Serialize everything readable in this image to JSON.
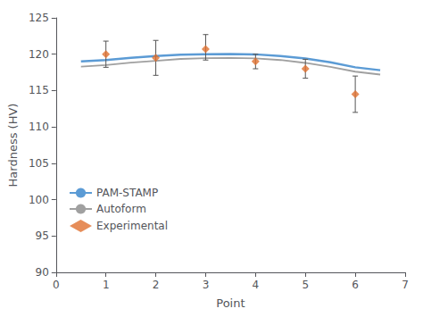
{
  "chart_data": {
    "type": "line",
    "xlabel": "Point",
    "ylabel": "Hardness (HV)",
    "xlim": [
      0,
      7
    ],
    "ylim": [
      90,
      125
    ],
    "xticks": [
      0,
      1,
      2,
      3,
      4,
      5,
      6,
      7
    ],
    "yticks": [
      90,
      95,
      100,
      105,
      110,
      115,
      120,
      125
    ],
    "grid": false,
    "legend": "lower left",
    "series": [
      {
        "name": "PAM-STAMP",
        "type": "line",
        "color": "#5b9bd5",
        "line_style": "solid",
        "x": [
          0.5,
          1,
          1.5,
          2,
          2.5,
          3,
          3.5,
          4,
          4.5,
          5,
          5.5,
          6,
          6.5
        ],
        "values": [
          119.0,
          119.2,
          119.5,
          119.75,
          119.92,
          120.0,
          120.03,
          119.98,
          119.75,
          119.4,
          118.9,
          118.2,
          117.8
        ]
      },
      {
        "name": "Autoform",
        "type": "line",
        "color": "#a0a0a0",
        "line_style": "solid",
        "x": [
          0.5,
          1,
          1.5,
          2,
          2.5,
          3,
          3.5,
          4,
          4.5,
          5,
          5.5,
          6,
          6.5
        ],
        "values": [
          118.3,
          118.5,
          118.85,
          119.1,
          119.35,
          119.45,
          119.5,
          119.42,
          119.2,
          118.8,
          118.25,
          117.6,
          117.2
        ]
      },
      {
        "name": "Experimental",
        "type": "scatter",
        "color": "#e07030",
        "marker": "diamond",
        "x": [
          1,
          2,
          3,
          4,
          5,
          6
        ],
        "values": [
          120.0,
          119.5,
          120.7,
          119.0,
          118.0,
          114.5
        ],
        "error_lower": [
          1.8,
          2.4,
          1.5,
          1.0,
          1.3,
          2.5
        ],
        "error_upper": [
          1.8,
          2.4,
          2.0,
          1.0,
          1.3,
          2.5
        ]
      }
    ]
  }
}
